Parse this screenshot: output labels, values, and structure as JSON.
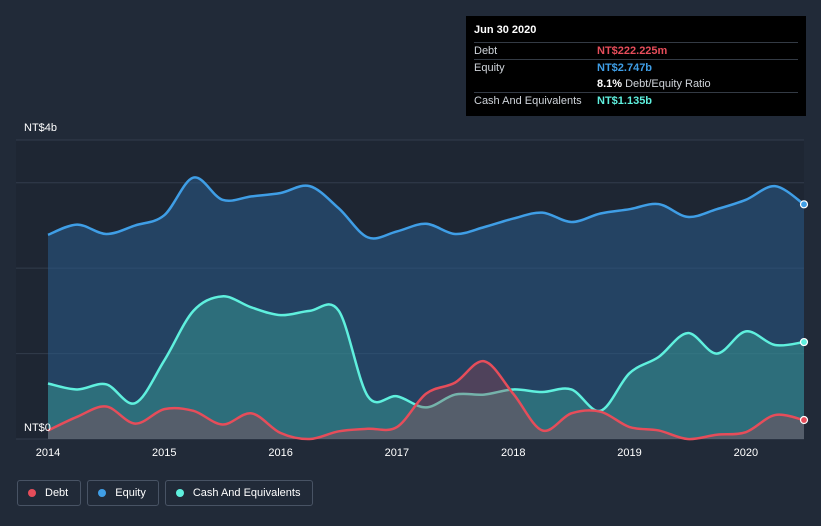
{
  "chart_data": {
    "type": "area",
    "currency_prefix": "NT$",
    "y_tick_labels": [
      "NT$4b",
      "NT$0"
    ],
    "ylim": [
      0,
      3.5
    ],
    "x_tick_labels": [
      "2014",
      "2015",
      "2016",
      "2017",
      "2018",
      "2019",
      "2020"
    ],
    "xlim": [
      2014.0,
      2020.5
    ],
    "grid": true,
    "legend_position": "bottom-left",
    "series": [
      {
        "name": "Debt",
        "color": "#e64d5a",
        "points": [
          [
            2014.0,
            0.1
          ],
          [
            2014.25,
            0.26
          ],
          [
            2014.5,
            0.38
          ],
          [
            2014.75,
            0.18
          ],
          [
            2015.0,
            0.35
          ],
          [
            2015.25,
            0.33
          ],
          [
            2015.5,
            0.17
          ],
          [
            2015.75,
            0.3
          ],
          [
            2016.0,
            0.07
          ],
          [
            2016.25,
            0.0
          ],
          [
            2016.5,
            0.09
          ],
          [
            2016.75,
            0.12
          ],
          [
            2017.0,
            0.14
          ],
          [
            2017.25,
            0.53
          ],
          [
            2017.5,
            0.66
          ],
          [
            2017.75,
            0.91
          ],
          [
            2018.0,
            0.53
          ],
          [
            2018.25,
            0.1
          ],
          [
            2018.5,
            0.3
          ],
          [
            2018.75,
            0.32
          ],
          [
            2019.0,
            0.14
          ],
          [
            2019.25,
            0.1
          ],
          [
            2019.5,
            0.0
          ],
          [
            2019.75,
            0.05
          ],
          [
            2020.0,
            0.08
          ],
          [
            2020.25,
            0.28
          ],
          [
            2020.5,
            0.222
          ]
        ]
      },
      {
        "name": "Equity",
        "color": "#3f9ee6",
        "points": [
          [
            2014.0,
            2.39
          ],
          [
            2014.25,
            2.51
          ],
          [
            2014.5,
            2.4
          ],
          [
            2014.75,
            2.5
          ],
          [
            2015.0,
            2.62
          ],
          [
            2015.25,
            3.06
          ],
          [
            2015.5,
            2.8
          ],
          [
            2015.75,
            2.84
          ],
          [
            2016.0,
            2.88
          ],
          [
            2016.25,
            2.96
          ],
          [
            2016.5,
            2.7
          ],
          [
            2016.75,
            2.36
          ],
          [
            2017.0,
            2.43
          ],
          [
            2017.25,
            2.52
          ],
          [
            2017.5,
            2.4
          ],
          [
            2017.75,
            2.48
          ],
          [
            2018.0,
            2.58
          ],
          [
            2018.25,
            2.65
          ],
          [
            2018.5,
            2.54
          ],
          [
            2018.75,
            2.64
          ],
          [
            2019.0,
            2.69
          ],
          [
            2019.25,
            2.75
          ],
          [
            2019.5,
            2.6
          ],
          [
            2019.75,
            2.69
          ],
          [
            2020.0,
            2.8
          ],
          [
            2020.25,
            2.96
          ],
          [
            2020.5,
            2.747
          ]
        ]
      },
      {
        "name": "Cash And Equivalents",
        "color": "#5ff0de",
        "points": [
          [
            2014.0,
            0.65
          ],
          [
            2014.25,
            0.58
          ],
          [
            2014.5,
            0.64
          ],
          [
            2014.75,
            0.42
          ],
          [
            2015.0,
            0.92
          ],
          [
            2015.25,
            1.5
          ],
          [
            2015.5,
            1.67
          ],
          [
            2015.75,
            1.54
          ],
          [
            2016.0,
            1.45
          ],
          [
            2016.25,
            1.5
          ],
          [
            2016.5,
            1.5
          ],
          [
            2016.75,
            0.5
          ],
          [
            2017.0,
            0.5
          ],
          [
            2017.25,
            0.37
          ],
          [
            2017.5,
            0.52
          ],
          [
            2017.75,
            0.52
          ],
          [
            2018.0,
            0.58
          ],
          [
            2018.25,
            0.55
          ],
          [
            2018.5,
            0.58
          ],
          [
            2018.75,
            0.33
          ],
          [
            2019.0,
            0.77
          ],
          [
            2019.25,
            0.96
          ],
          [
            2019.5,
            1.24
          ],
          [
            2019.75,
            1.0
          ],
          [
            2020.0,
            1.26
          ],
          [
            2020.25,
            1.1
          ],
          [
            2020.5,
            1.135
          ]
        ]
      }
    ]
  },
  "tooltip": {
    "date": "Jun 30 2020",
    "debt_label": "Debt",
    "debt_value": "NT$222.225m",
    "equity_label": "Equity",
    "equity_value": "NT$2.747b",
    "ratio_value": "8.1%",
    "ratio_label": "Debt/Equity Ratio",
    "cash_label": "Cash And Equivalents",
    "cash_value": "NT$1.135b"
  },
  "legend": [
    {
      "label": "Debt",
      "color": "#e64d5a"
    },
    {
      "label": "Equity",
      "color": "#3f9ee6"
    },
    {
      "label": "Cash And Equivalents",
      "color": "#5ff0de"
    }
  ]
}
